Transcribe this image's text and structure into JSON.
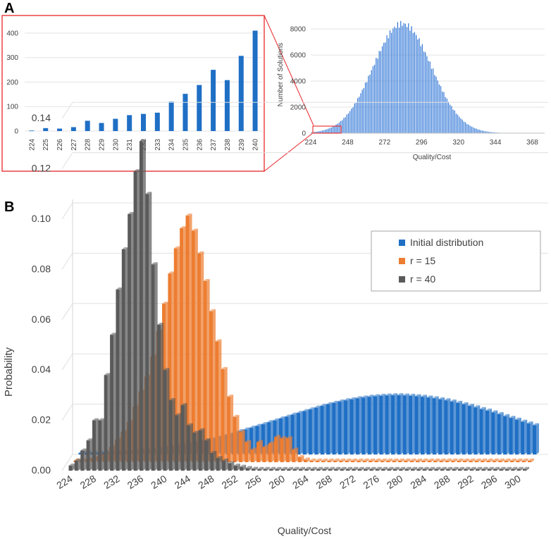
{
  "panels": {
    "a": "A",
    "b": "B"
  },
  "chart_data": [
    {
      "id": "A-left",
      "type": "bar",
      "title": "",
      "xlabel": "",
      "ylabel": "",
      "ylim": [
        0,
        420
      ],
      "yticks": [
        0,
        100,
        200,
        300,
        400
      ],
      "categories": [
        "224",
        "225",
        "226",
        "227",
        "228",
        "229",
        "230",
        "231",
        "232",
        "233",
        "234",
        "235",
        "236",
        "237",
        "238",
        "239",
        "240"
      ],
      "values": [
        2,
        12,
        10,
        16,
        42,
        33,
        50,
        65,
        70,
        75,
        120,
        152,
        188,
        250,
        208,
        307,
        410
      ],
      "color": "#1f6fc5",
      "note": "zoomed-in view of the highlighted low-end region of the full distribution"
    },
    {
      "id": "A-right",
      "type": "bar",
      "xlabel": "Quality/Cost",
      "ylabel": "Number of Solutions",
      "xlim": [
        224,
        376
      ],
      "xticks": [
        224,
        248,
        272,
        296,
        320,
        344,
        368
      ],
      "ylim": [
        0,
        8600
      ],
      "yticks": [
        0,
        2000,
        4000,
        6000,
        8000
      ],
      "distribution": {
        "shape": "approximately normal",
        "x_min": 224,
        "x_max": 360,
        "peak_x": 283,
        "peak_value": 8400
      },
      "color": "#2e75d6"
    },
    {
      "id": "B",
      "type": "bar",
      "style": "3d-column",
      "xlabel": "Quality/Cost",
      "ylabel": "Probability",
      "ylim": [
        0,
        0.14
      ],
      "yticks": [
        "0.00",
        "0.02",
        "0.04",
        "0.06",
        "0.08",
        "0.10",
        "0.12",
        "0.14"
      ],
      "xticks": [
        "224",
        "228",
        "232",
        "236",
        "240",
        "244",
        "248",
        "252",
        "256",
        "260",
        "264",
        "268",
        "272",
        "276",
        "280",
        "284",
        "288",
        "292",
        "296",
        "300"
      ],
      "x_range": [
        224,
        301
      ],
      "legend": {
        "position": "top-right"
      },
      "series": [
        {
          "name": "Initial distribution",
          "color": "#1f6fc5",
          "values": [
            0.0003,
            0.0004,
            0.0005,
            0.0006,
            0.0007,
            0.0008,
            0.0009,
            0.001,
            0.0012,
            0.0014,
            0.0016,
            0.0018,
            0.002,
            0.0023,
            0.0026,
            0.003,
            0.0033,
            0.0037,
            0.0041,
            0.0045,
            0.005,
            0.0055,
            0.006,
            0.0066,
            0.0072,
            0.0078,
            0.0085,
            0.0092,
            0.0099,
            0.0106,
            0.0113,
            0.012,
            0.0128,
            0.0135,
            0.0143,
            0.015,
            0.0158,
            0.0165,
            0.0172,
            0.0179,
            0.0186,
            0.0193,
            0.0199,
            0.0205,
            0.021,
            0.0215,
            0.0219,
            0.0223,
            0.0226,
            0.0229,
            0.0231,
            0.0233,
            0.0234,
            0.0235,
            0.0235,
            0.0234,
            0.0233,
            0.0231,
            0.0229,
            0.0226,
            0.0223,
            0.0219,
            0.0215,
            0.021,
            0.0205,
            0.0199,
            0.0193,
            0.0187,
            0.018,
            0.0174,
            0.0167,
            0.016,
            0.0152,
            0.0145,
            0.0138,
            0.013,
            0.0123,
            0.0116
          ]
        },
        {
          "name": "r  = 15",
          "color": "#ed7d31",
          "values": [
            0.0003,
            0.0006,
            0.001,
            0.0015,
            0.0025,
            0.003,
            0.006,
            0.009,
            0.012,
            0.016,
            0.022,
            0.028,
            0.034,
            0.042,
            0.052,
            0.063,
            0.075,
            0.085,
            0.093,
            0.098,
            0.092,
            0.083,
            0.072,
            0.06,
            0.048,
            0.037,
            0.026,
            0.018,
            0.012,
            0.008,
            0.005,
            0.008,
            0.006,
            0.0075,
            0.01,
            0.0095,
            0.0095,
            0.005,
            0.002,
            0.001,
            0.0005,
            0.0003,
            0.0002,
            0.0001,
            0,
            0,
            0,
            0,
            0,
            0,
            0,
            0,
            0,
            0,
            0,
            0,
            0,
            0,
            0,
            0,
            0,
            0,
            0,
            0,
            0,
            0,
            0,
            0,
            0,
            0,
            0,
            0,
            0,
            0,
            0,
            0,
            0,
            0
          ]
        },
        {
          "name": "r  = 40",
          "color": "#5a5a5a",
          "values": [
            0.002,
            0.004,
            0.008,
            0.012,
            0.02,
            0.02,
            0.038,
            0.054,
            0.072,
            0.088,
            0.102,
            0.119,
            0.131,
            0.11,
            0.082,
            0.058,
            0.04,
            0.028,
            0.022,
            0.026,
            0.018,
            0.015,
            0.016,
            0.012,
            0.007,
            0.005,
            0.004,
            0.003,
            0.002,
            0.0015,
            0.001,
            0.0007,
            0.0005,
            0.0003,
            0.0002,
            0.0001,
            0,
            0,
            0,
            0,
            0,
            0,
            0,
            0,
            0,
            0,
            0,
            0,
            0,
            0,
            0,
            0,
            0,
            0,
            0,
            0,
            0,
            0,
            0,
            0,
            0,
            0,
            0,
            0,
            0,
            0,
            0,
            0,
            0,
            0,
            0,
            0,
            0,
            0,
            0,
            0,
            0,
            0
          ]
        }
      ]
    }
  ]
}
